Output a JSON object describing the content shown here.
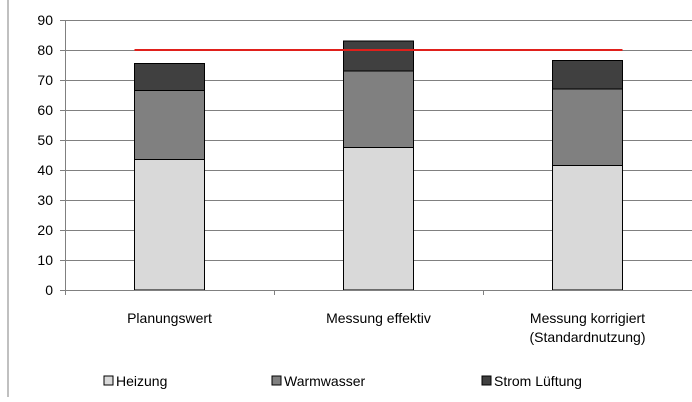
{
  "chart_data": {
    "type": "bar",
    "stacked": true,
    "categories": [
      [
        "Planungswert"
      ],
      [
        "Messung effektiv"
      ],
      [
        "Messung korrigiert",
        "(Standardnutzung)"
      ]
    ],
    "series": [
      {
        "name": "Heizung",
        "values": [
          43.5,
          47.5,
          41.5
        ],
        "color": "#D9D9D9"
      },
      {
        "name": "Warmwasser",
        "values": [
          23,
          25.5,
          25.5
        ],
        "color": "#808080"
      },
      {
        "name": "Strom Lüftung",
        "values": [
          9,
          10,
          9.5
        ],
        "color": "#404040"
      }
    ],
    "reference_line": {
      "value": 80,
      "color": "#E0201B",
      "from_category": 0,
      "to_category": 2
    },
    "ylim": [
      0,
      90
    ],
    "yticks": [
      0,
      10,
      20,
      30,
      40,
      50,
      60,
      70,
      80,
      90
    ],
    "grid": true,
    "legend_position": "bottom"
  }
}
